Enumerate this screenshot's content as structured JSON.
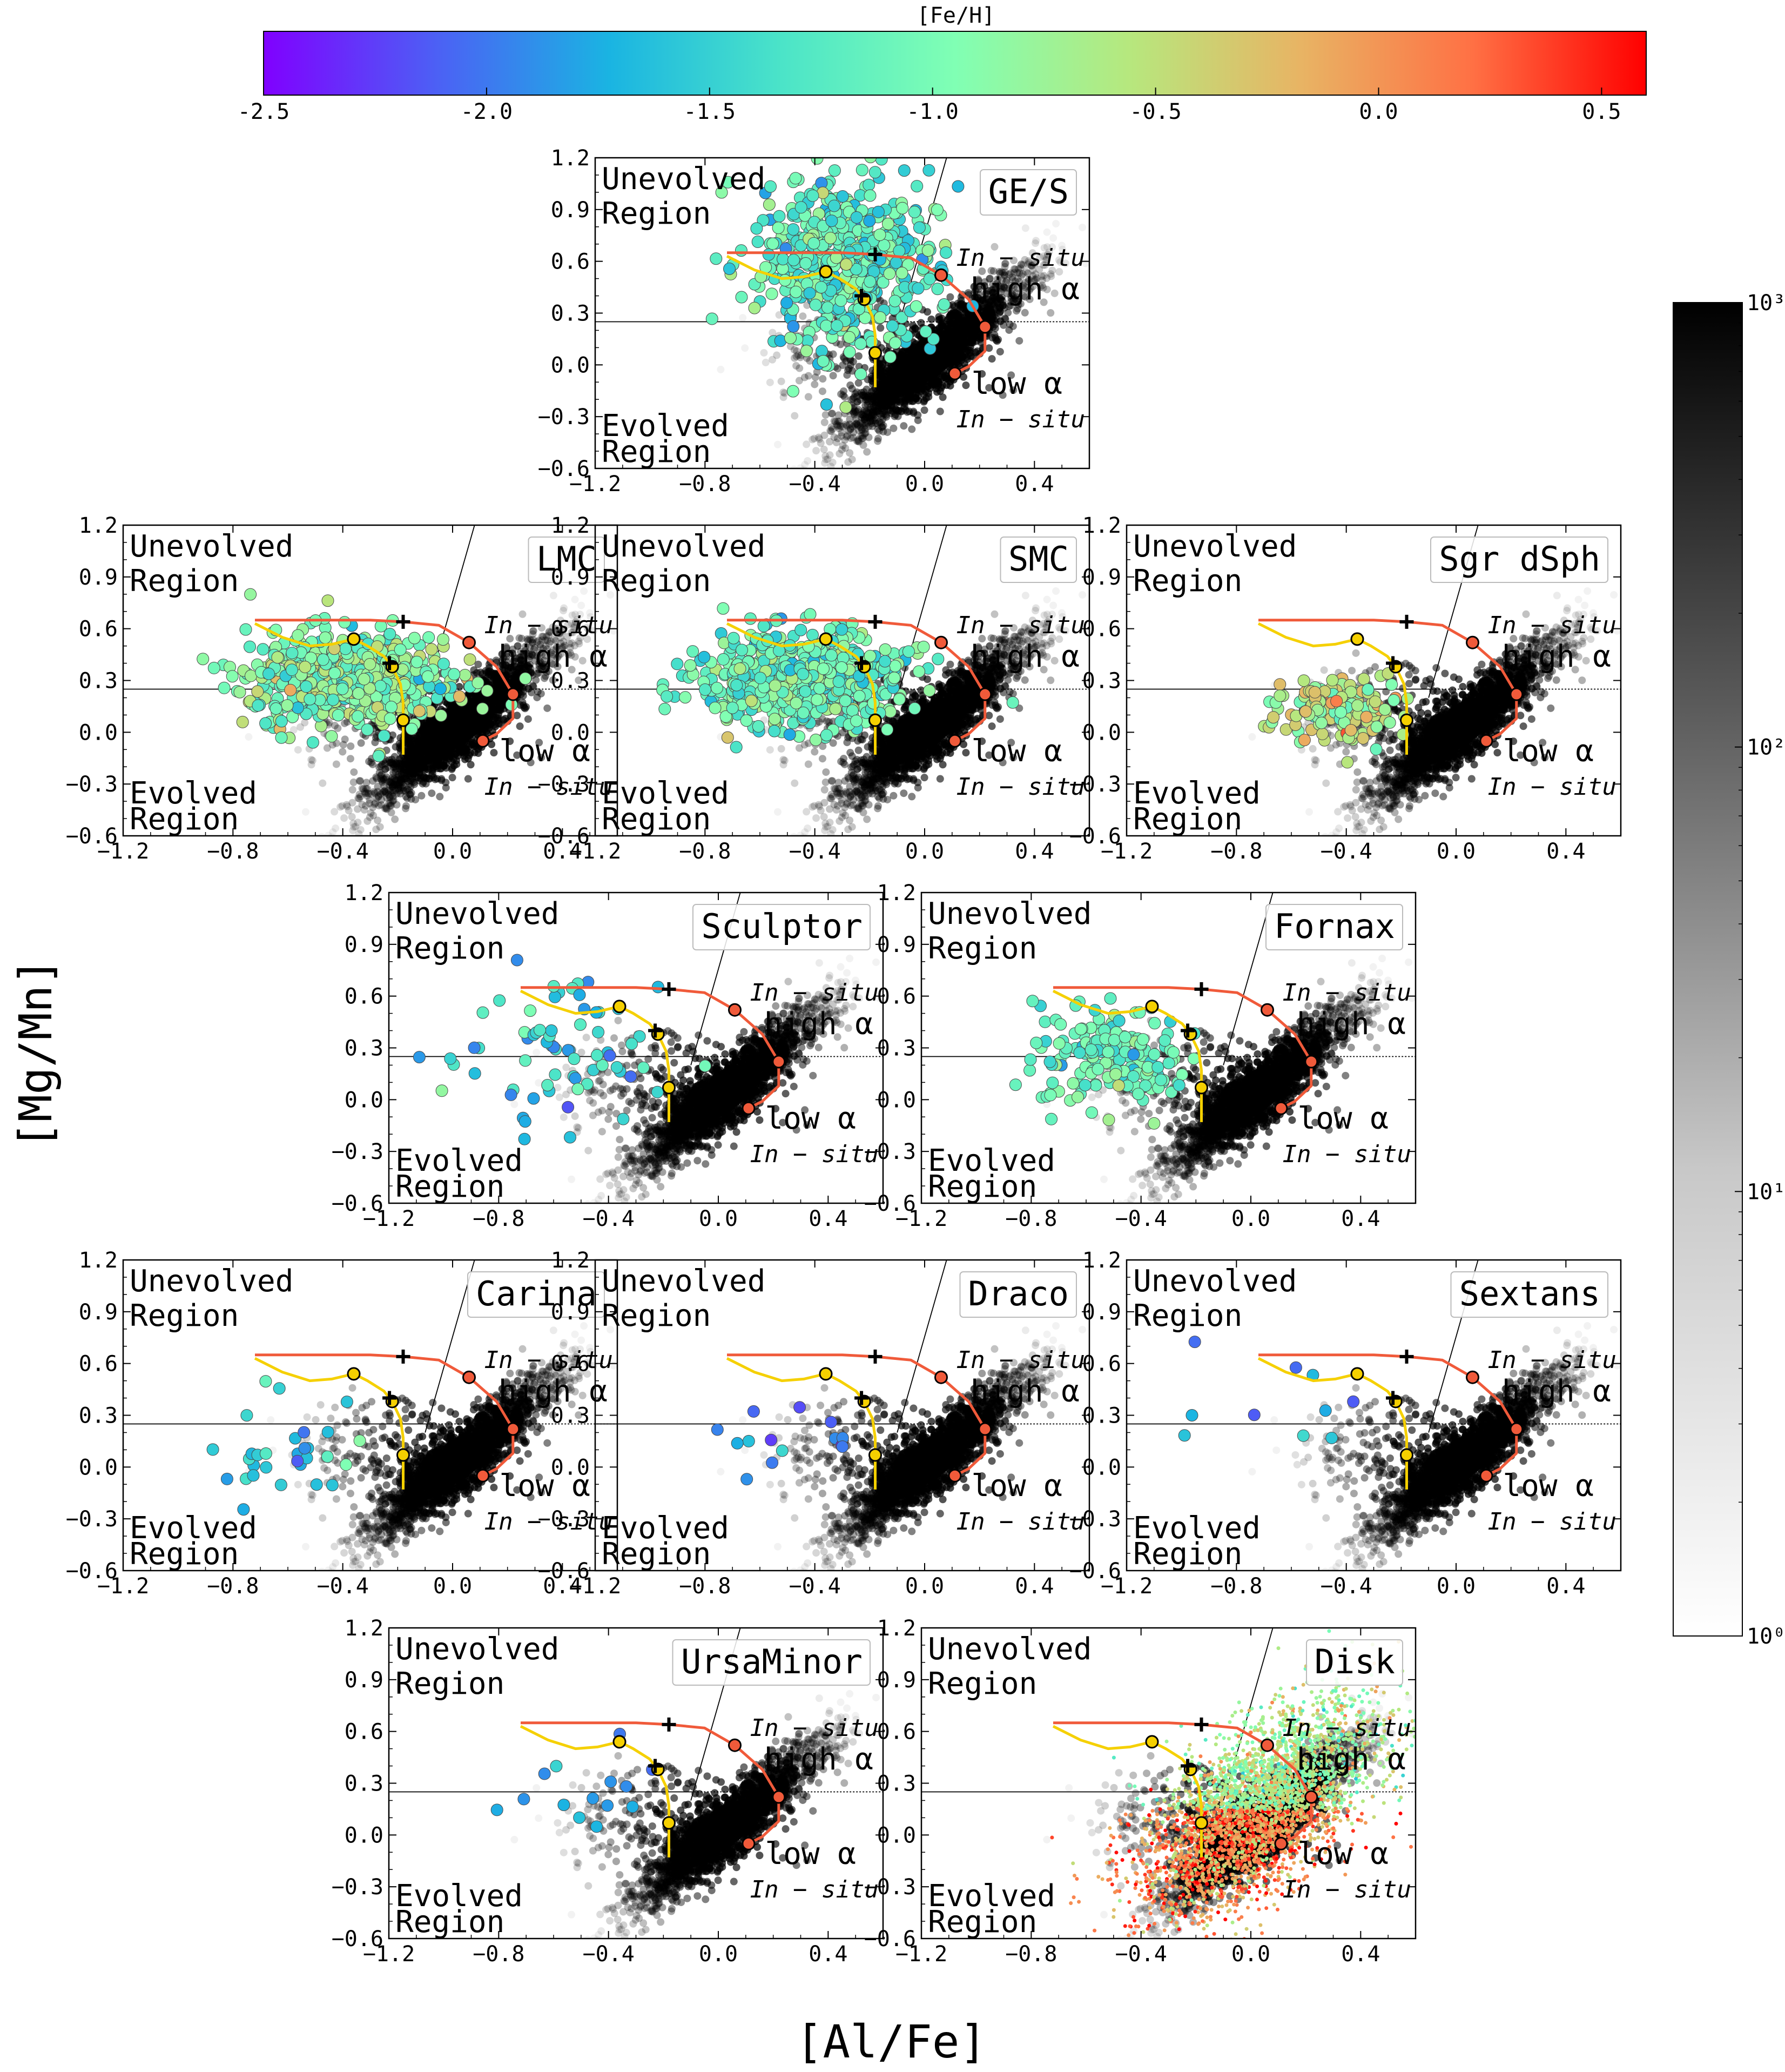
{
  "figure": {
    "colorbar": {
      "label": "[Fe/H]",
      "range": [
        -2.5,
        0.6
      ],
      "ticks": [
        "-2.5",
        "-2.0",
        "-1.5",
        "-1.0",
        "-0.5",
        "0.0",
        "0.5"
      ],
      "tick_values": [
        -2.5,
        -2.0,
        -1.5,
        -1.0,
        -0.5,
        0.0,
        0.5
      ],
      "colormap": [
        "#8000ff",
        "#4c60f5",
        "#1ab4e2",
        "#4be4c8",
        "#80ffb4",
        "#b6e87e",
        "#e8b464",
        "#ff7044",
        "#ff0000"
      ]
    },
    "density_bar": {
      "tick_labels": [
        "10⁰",
        "10¹",
        "10²",
        "10³"
      ],
      "log_range": [
        0,
        3
      ],
      "colors": [
        "#ffffff",
        "#000000"
      ]
    },
    "xlabel": "[Al/Fe]",
    "ylabel": "[Mg/Mn]"
  },
  "chart_data": {
    "type": "scatter",
    "xlim": [
      -1.2,
      0.6
    ],
    "ylim": [
      -0.6,
      1.2
    ],
    "x_ticks": [
      "−1.2",
      "−0.8",
      "−0.4",
      "0.0",
      "0.4"
    ],
    "x_tick_values": [
      -1.2,
      -0.8,
      -0.4,
      0.0,
      0.4
    ],
    "y_ticks": [
      "1.2",
      "0.9",
      "0.6",
      "0.3",
      "0.0",
      "−0.3",
      "−0.6"
    ],
    "y_tick_values": [
      1.2,
      0.9,
      0.6,
      0.3,
      0.0,
      -0.3,
      -0.6
    ],
    "region_labels": {
      "unevolved_1": "Unevolved",
      "unevolved_2": "Region",
      "evolved_1": "Evolved",
      "evolved_2": "Region",
      "insitu_high_1": "In − situ",
      "insitu_high_2": "high α",
      "insitu_low_1": "low α",
      "insitu_low_2": "In − situ"
    },
    "divider": {
      "horizontal_y": 0.25,
      "diagonal": [
        [
          -0.1,
          0.2
        ],
        [
          0.08,
          1.2
        ]
      ]
    },
    "tracks": {
      "red": {
        "color": "#f05a3a",
        "points": [
          [
            -0.72,
            0.65
          ],
          [
            -0.5,
            0.65
          ],
          [
            -0.3,
            0.65
          ],
          [
            -0.18,
            0.64
          ],
          [
            -0.05,
            0.62
          ],
          [
            0.06,
            0.52
          ],
          [
            0.16,
            0.38
          ],
          [
            0.22,
            0.22
          ],
          [
            0.22,
            0.08
          ],
          [
            0.16,
            -0.01
          ],
          [
            0.11,
            -0.05
          ]
        ]
      },
      "red_markers": [
        [
          0.06,
          0.52
        ],
        [
          0.22,
          0.22
        ],
        [
          0.11,
          -0.05
        ]
      ],
      "yellow": {
        "color": "#f5d000",
        "points": [
          [
            -0.72,
            0.63
          ],
          [
            -0.62,
            0.55
          ],
          [
            -0.52,
            0.5
          ],
          [
            -0.44,
            0.51
          ],
          [
            -0.36,
            0.54
          ],
          [
            -0.31,
            0.5
          ],
          [
            -0.25,
            0.44
          ],
          [
            -0.22,
            0.38
          ],
          [
            -0.19,
            0.28
          ],
          [
            -0.18,
            0.17
          ],
          [
            -0.18,
            0.07
          ],
          [
            -0.18,
            -0.13
          ]
        ]
      },
      "yellow_markers": [
        [
          -0.36,
          0.54
        ],
        [
          -0.22,
          0.38
        ],
        [
          -0.18,
          0.07
        ]
      ],
      "cross_markers": [
        [
          -0.18,
          0.64
        ],
        [
          -0.23,
          0.4
        ]
      ]
    },
    "panels": [
      {
        "name": "GE/S",
        "n": 520,
        "cx": -0.3,
        "cy": 0.6,
        "sx": 0.17,
        "sy": 0.25,
        "fe": -1.2,
        "fesd": 0.28,
        "edge": true
      },
      {
        "name": "LMC",
        "n": 620,
        "cx": -0.38,
        "cy": 0.3,
        "sx": 0.18,
        "sy": 0.14,
        "fe": -0.9,
        "fesd": 0.3,
        "edge": true
      },
      {
        "name": "SMC",
        "n": 560,
        "cx": -0.45,
        "cy": 0.3,
        "sx": 0.18,
        "sy": 0.14,
        "fe": -1.1,
        "fesd": 0.25,
        "edge": true
      },
      {
        "name": "Sgr dSph",
        "n": 150,
        "cx": -0.42,
        "cy": 0.12,
        "sx": 0.12,
        "sy": 0.1,
        "fe": -0.6,
        "fesd": 0.3,
        "edge": true
      },
      {
        "name": "Sculptor",
        "n": 70,
        "cx": -0.62,
        "cy": 0.25,
        "sx": 0.2,
        "sy": 0.2,
        "fe": -1.6,
        "fesd": 0.3,
        "edge": true
      },
      {
        "name": "Fornax",
        "n": 180,
        "cx": -0.5,
        "cy": 0.25,
        "sx": 0.14,
        "sy": 0.15,
        "fe": -1.1,
        "fesd": 0.22,
        "edge": true
      },
      {
        "name": "Carina",
        "n": 30,
        "cx": -0.6,
        "cy": 0.1,
        "sx": 0.16,
        "sy": 0.16,
        "fe": -1.55,
        "fesd": 0.25,
        "edge": true
      },
      {
        "name": "Draco",
        "n": 14,
        "cx": -0.55,
        "cy": 0.2,
        "sx": 0.16,
        "sy": 0.1,
        "fe": -1.9,
        "fesd": 0.25,
        "edge": true
      },
      {
        "name": "Sextans",
        "n": 10,
        "cx": -0.6,
        "cy": 0.18,
        "sx": 0.25,
        "sy": 0.25,
        "fe": -1.8,
        "fesd": 0.25,
        "edge": true
      },
      {
        "name": "UrsaMinor",
        "n": 14,
        "cx": -0.5,
        "cy": 0.25,
        "sx": 0.2,
        "sy": 0.25,
        "fe": -1.85,
        "fesd": 0.25,
        "edge": true
      },
      {
        "name": "Disk",
        "n": 3200,
        "cx": 0.02,
        "cy": 0.15,
        "sx": 0.22,
        "sy": 0.24,
        "fe": -0.3,
        "fesd": 0.35,
        "edge": false
      }
    ]
  }
}
